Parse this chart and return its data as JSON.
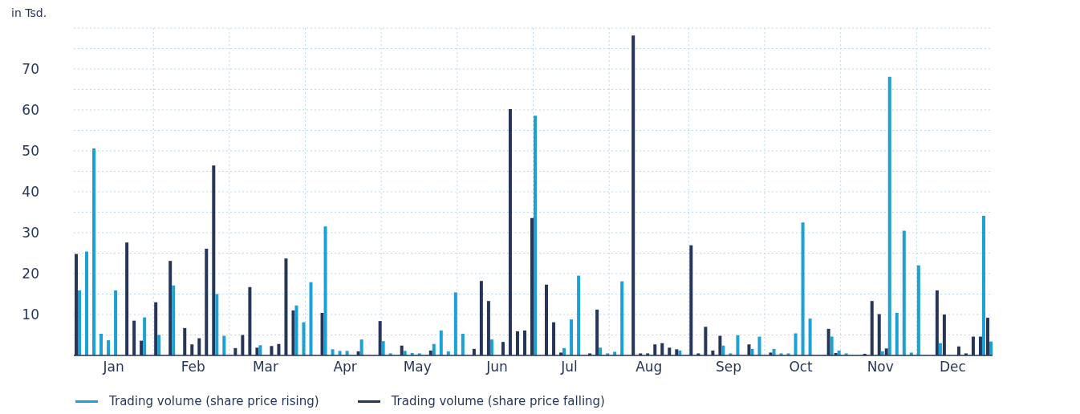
{
  "chart_data": {
    "type": "bar",
    "ylabel": "in Tsd.",
    "categories": [
      null,
      null,
      null,
      null,
      null,
      "Jan",
      null,
      null,
      null,
      null,
      null,
      null,
      null,
      null,
      null,
      null,
      "Feb",
      null,
      null,
      null,
      null,
      null,
      null,
      null,
      null,
      null,
      "Mar",
      null,
      null,
      null,
      null,
      null,
      null,
      null,
      null,
      null,
      null,
      "Apr",
      null,
      null,
      null,
      null,
      null,
      null,
      null,
      null,
      null,
      "May",
      null,
      null,
      null,
      null,
      null,
      null,
      null,
      null,
      null,
      null,
      "Jun",
      null,
      null,
      null,
      null,
      null,
      null,
      null,
      null,
      null,
      "Jul",
      null,
      null,
      null,
      null,
      null,
      null,
      null,
      null,
      null,
      null,
      "Aug",
      null,
      null,
      null,
      null,
      null,
      null,
      null,
      null,
      null,
      null,
      "Sep",
      null,
      null,
      null,
      null,
      null,
      null,
      null,
      null,
      null,
      "Oct",
      null,
      null,
      null,
      null,
      null,
      null,
      null,
      null,
      null,
      null,
      "Nov",
      null,
      null,
      null,
      null,
      null,
      null,
      null,
      null,
      null,
      "Dec",
      null,
      null,
      null,
      null,
      null
    ],
    "series": [
      {
        "name": "Trading volume (share price rising)",
        "color": "#1ba1d3",
        "values": [
          15.9,
          25.4,
          50.6,
          5.3,
          3.7,
          15.9,
          null,
          null,
          null,
          9.3,
          null,
          5.0,
          null,
          17.1,
          null,
          null,
          null,
          null,
          null,
          15.0,
          4.8,
          null,
          null,
          null,
          null,
          2.5,
          null,
          null,
          null,
          null,
          12.2,
          8.1,
          17.9,
          null,
          31.5,
          1.5,
          1.1,
          1.1,
          null,
          3.9,
          null,
          null,
          3.5,
          0.5,
          null,
          1.1,
          0.6,
          0.5,
          null,
          2.8,
          6.1,
          1.0,
          15.4,
          5.3,
          null,
          null,
          null,
          3.9,
          null,
          null,
          null,
          null,
          null,
          58.6,
          null,
          null,
          null,
          1.8,
          8.8,
          19.5,
          null,
          null,
          1.9,
          0.5,
          0.9,
          18.1,
          null,
          null,
          null,
          null,
          null,
          null,
          null,
          1.2,
          null,
          null,
          null,
          null,
          null,
          2.4,
          0.5,
          4.9,
          null,
          1.6,
          4.6,
          null,
          1.6,
          0.5,
          0.5,
          5.4,
          32.5,
          9.0,
          null,
          null,
          4.6,
          1.2,
          0.5,
          null,
          null,
          null,
          null,
          1.0,
          68.1,
          10.4,
          30.5,
          0.7,
          22.0,
          null,
          null,
          3.0,
          null,
          null,
          null,
          null,
          null,
          34.1,
          3.4
        ]
      },
      {
        "name": "Trading volume (share price falling)",
        "color": "#263659",
        "values": [
          24.8,
          null,
          null,
          null,
          null,
          null,
          null,
          27.6,
          8.5,
          3.6,
          null,
          13.0,
          null,
          23.1,
          null,
          6.7,
          2.7,
          4.2,
          26.1,
          46.4,
          null,
          null,
          1.8,
          5.0,
          16.7,
          1.9,
          null,
          2.3,
          2.8,
          23.7,
          11.0,
          null,
          null,
          null,
          10.4,
          null,
          null,
          null,
          null,
          1.0,
          null,
          null,
          8.4,
          null,
          null,
          2.4,
          null,
          null,
          null,
          1.2,
          null,
          null,
          null,
          null,
          null,
          1.6,
          18.2,
          13.3,
          null,
          3.3,
          60.2,
          5.9,
          6.1,
          33.6,
          null,
          17.3,
          8.1,
          0.7,
          null,
          null,
          null,
          0.5,
          11.2,
          null,
          null,
          null,
          null,
          78.2,
          0.5,
          0.5,
          2.7,
          3.0,
          1.9,
          1.5,
          null,
          26.9,
          0.5,
          7.0,
          1.2,
          4.8,
          null,
          null,
          null,
          2.7,
          null,
          null,
          0.7,
          null,
          null,
          null,
          null,
          null,
          null,
          null,
          6.5,
          0.6,
          null,
          null,
          null,
          0.4,
          13.3,
          10.1,
          1.7,
          null,
          null,
          null,
          null,
          null,
          null,
          15.9,
          10.0,
          null,
          2.2,
          0.5,
          4.6,
          4.6,
          9.2
        ]
      }
    ],
    "ylim": [
      0,
      80
    ],
    "yticks": [
      {
        "value": 0,
        "label": null
      },
      {
        "value": 5,
        "label": null
      },
      10,
      {
        "value": 15,
        "label": null
      },
      20,
      {
        "value": 25,
        "label": null
      },
      30,
      {
        "value": 35,
        "label": null
      },
      40,
      {
        "value": 45,
        "label": null
      },
      50,
      {
        "value": 55,
        "label": null
      },
      60,
      {
        "value": 65,
        "label": null
      },
      70,
      {
        "value": 75,
        "label": null
      },
      {
        "value": 80,
        "label": null
      }
    ],
    "grid": true,
    "legend": "bottom"
  }
}
